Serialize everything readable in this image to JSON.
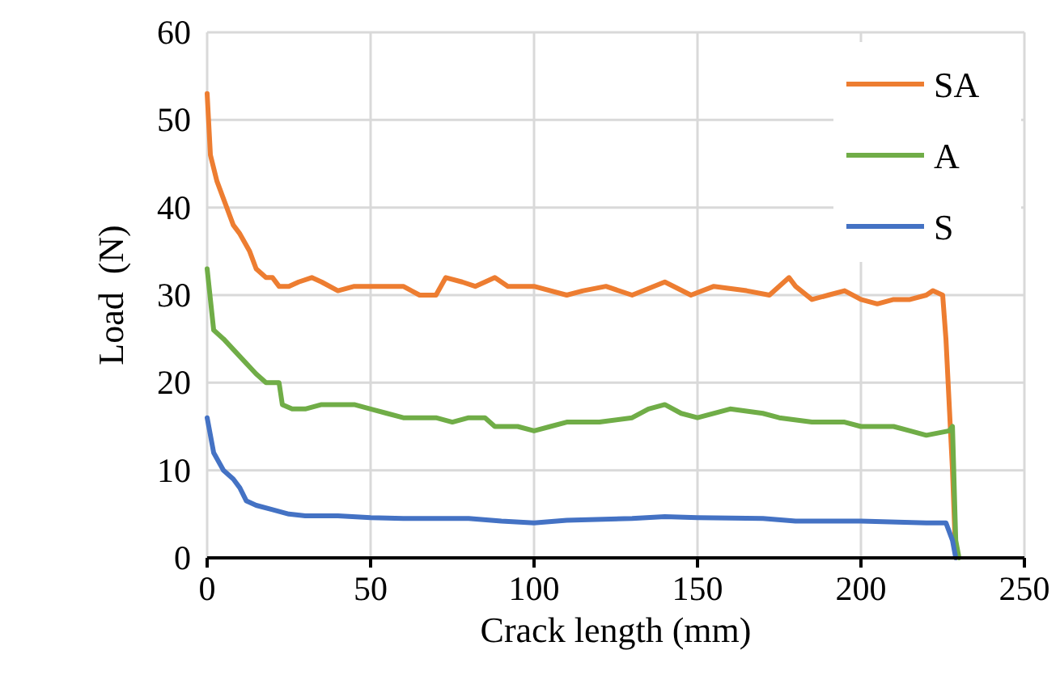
{
  "chart_data": {
    "type": "line",
    "xlabel": "Crack length (mm)",
    "ylabel": "Load  (N)",
    "xlim": [
      0,
      250
    ],
    "xticks": [
      0,
      50,
      100,
      150,
      200,
      250
    ],
    "ylim": [
      0,
      60
    ],
    "yticks": [
      0,
      10,
      20,
      30,
      40,
      50,
      60
    ],
    "grid": true,
    "legend": "top right",
    "marker": "none",
    "line_style": "solid",
    "series": [
      {
        "name": "SA",
        "color": "#ed7d31",
        "x": [
          0,
          1,
          3,
          5,
          8,
          10,
          13,
          15,
          18,
          20,
          22,
          25,
          28,
          32,
          35,
          40,
          45,
          50,
          60,
          65,
          70,
          73,
          78,
          82,
          88,
          92,
          100,
          110,
          115,
          122,
          130,
          140,
          148,
          155,
          165,
          172,
          178,
          180,
          185,
          190,
          195,
          200,
          205,
          210,
          215,
          220,
          222,
          225,
          226,
          228,
          229
        ],
        "values": [
          53,
          46,
          43,
          41,
          38,
          37,
          35,
          33,
          32,
          32,
          31,
          31,
          31.5,
          32,
          31.5,
          30.5,
          31,
          31,
          31,
          30,
          30,
          32,
          31.5,
          31,
          32,
          31,
          31,
          30,
          30.5,
          31,
          30,
          31.5,
          30,
          31,
          30.5,
          30,
          32,
          31,
          29.5,
          30,
          30.5,
          29.5,
          29,
          29.5,
          29.5,
          30,
          30.5,
          30,
          25,
          10,
          0
        ]
      },
      {
        "name": "A",
        "color": "#70ad47",
        "x": [
          0,
          2,
          5,
          10,
          15,
          18,
          22,
          23,
          26,
          30,
          35,
          40,
          45,
          50,
          55,
          60,
          70,
          75,
          80,
          85,
          88,
          95,
          100,
          105,
          110,
          120,
          130,
          135,
          140,
          145,
          150,
          160,
          170,
          175,
          185,
          195,
          200,
          210,
          215,
          220,
          227,
          228,
          229,
          230
        ],
        "values": [
          33,
          26,
          25,
          23,
          21,
          20,
          20,
          17.5,
          17,
          17,
          17.5,
          17.5,
          17.5,
          17,
          16.5,
          16,
          16,
          15.5,
          16,
          16,
          15,
          15,
          14.5,
          15,
          15.5,
          15.5,
          16,
          17,
          17.5,
          16.5,
          16,
          17,
          16.5,
          16,
          15.5,
          15.5,
          15,
          15,
          14.5,
          14,
          14.5,
          15,
          2,
          0
        ]
      },
      {
        "name": "S",
        "color": "#4472c4",
        "x": [
          0,
          2,
          5,
          8,
          10,
          12,
          15,
          20,
          25,
          30,
          40,
          50,
          60,
          80,
          90,
          100,
          110,
          130,
          140,
          150,
          170,
          180,
          200,
          220,
          226,
          228,
          229
        ],
        "values": [
          16,
          12,
          10,
          9,
          8,
          6.5,
          6,
          5.5,
          5,
          4.8,
          4.8,
          4.6,
          4.5,
          4.5,
          4.2,
          4,
          4.3,
          4.5,
          4.7,
          4.6,
          4.5,
          4.2,
          4.2,
          4,
          4,
          2,
          0
        ]
      }
    ]
  }
}
